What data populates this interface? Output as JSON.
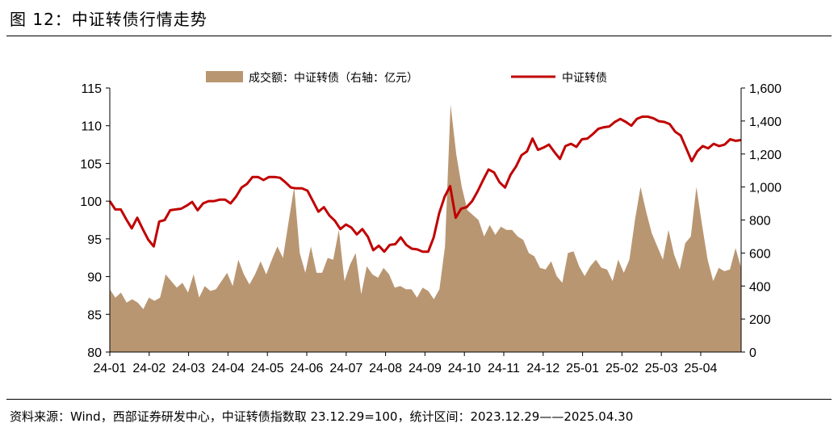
{
  "figure": {
    "title": "图 12：中证转债行情走势",
    "source": "资料来源：Wind，西部证券研发中心，中证转债指数取 23.12.29=100，统计区间：2023.12.29——2025.04.30"
  },
  "chart_data": {
    "type": "line",
    "title": "",
    "x_tick_labels": [
      "24-01",
      "24-02",
      "24-03",
      "24-04",
      "24-05",
      "24-06",
      "24-07",
      "24-08",
      "24-09",
      "24-10",
      "24-11",
      "24-12",
      "25-01",
      "25-02",
      "25-03",
      "25-04"
    ],
    "y_left": {
      "ticks": [
        80,
        85,
        90,
        95,
        100,
        105,
        110,
        115
      ],
      "tick_labels": [
        "80",
        "85",
        "90",
        "95",
        "100",
        "105",
        "110",
        "115"
      ],
      "range": [
        80,
        115
      ]
    },
    "y_right": {
      "ticks": [
        0,
        200,
        400,
        600,
        800,
        1000,
        1200,
        1400,
        1600
      ],
      "tick_labels": [
        "0",
        "200",
        "400",
        "600",
        "800",
        "1,000",
        "1,200",
        "1,400",
        "1,600"
      ],
      "range": [
        0,
        1600
      ]
    },
    "legend_position": "top-center",
    "grid": false,
    "series": [
      {
        "name": "成交额：中证转债（右轴：亿元）",
        "type": "area",
        "axis": "right",
        "color": "#b99672",
        "values": [
          380,
          330,
          360,
          300,
          320,
          300,
          260,
          330,
          310,
          330,
          470,
          430,
          390,
          420,
          360,
          470,
          330,
          400,
          370,
          380,
          430,
          480,
          400,
          560,
          470,
          410,
          470,
          550,
          470,
          560,
          640,
          570,
          790,
          1000,
          600,
          480,
          640,
          480,
          480,
          570,
          560,
          740,
          430,
          530,
          600,
          350,
          520,
          470,
          450,
          510,
          470,
          390,
          400,
          380,
          380,
          330,
          390,
          370,
          320,
          380,
          640,
          1500,
          1200,
          1000,
          860,
          830,
          800,
          700,
          770,
          710,
          760,
          740,
          740,
          700,
          680,
          600,
          580,
          510,
          500,
          550,
          460,
          420,
          600,
          610,
          520,
          460,
          520,
          560,
          510,
          500,
          430,
          560,
          480,
          560,
          800,
          1000,
          850,
          720,
          640,
          560,
          740,
          590,
          500,
          660,
          700,
          1000,
          770,
          560,
          430,
          510,
          490,
          500,
          630,
          510
        ]
      },
      {
        "name": "中证转债",
        "type": "line",
        "axis": "left",
        "color": "#c00000",
        "values": [
          100.0,
          98.9,
          98.9,
          97.6,
          96.4,
          97.8,
          96.3,
          94.9,
          94.0,
          97.3,
          97.5,
          98.8,
          98.9,
          99.0,
          99.4,
          99.9,
          98.8,
          99.7,
          100.0,
          100.0,
          100.2,
          100.2,
          99.7,
          100.6,
          101.8,
          102.3,
          103.2,
          103.2,
          102.8,
          103.2,
          103.2,
          103.1,
          102.5,
          101.8,
          101.7,
          101.7,
          101.4,
          100.0,
          98.6,
          99.2,
          98.1,
          97.4,
          96.3,
          96.9,
          96.5,
          95.6,
          96.3,
          95.3,
          93.5,
          94.1,
          93.3,
          94.2,
          94.3,
          95.2,
          94.2,
          93.7,
          93.6,
          93.3,
          93.3,
          95.2,
          98.4,
          100.6,
          102.0,
          97.8,
          99.0,
          99.2,
          100.0,
          101.3,
          102.8,
          104.2,
          103.8,
          102.5,
          101.8,
          103.5,
          104.6,
          106.1,
          106.6,
          108.3,
          106.8,
          107.1,
          107.5,
          106.5,
          105.6,
          107.3,
          107.6,
          107.2,
          108.2,
          108.3,
          108.9,
          109.6,
          109.8,
          109.9,
          110.5,
          110.9,
          110.5,
          110.0,
          110.9,
          111.2,
          111.2,
          111.0,
          110.6,
          110.5,
          110.2,
          109.2,
          108.7,
          107.0,
          105.3,
          106.6,
          107.3,
          107.0,
          107.6,
          107.3,
          107.5,
          108.2,
          108.0,
          108.1
        ]
      }
    ]
  }
}
